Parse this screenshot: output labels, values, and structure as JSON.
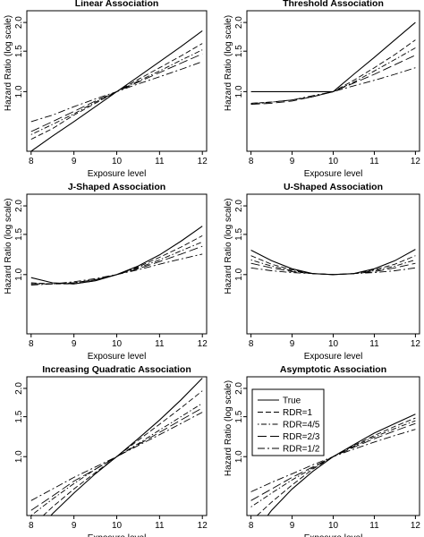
{
  "figure": {
    "panels": [
      {
        "title": "Linear Association",
        "xlabel": "Exposure level",
        "ylabel": "Hazard Ratio (log scale)",
        "show_xlabel": true,
        "xticks": [
          "8",
          "9",
          "10",
          "11",
          "12"
        ],
        "yticks": [
          "1.0",
          "1.5",
          "2.0"
        ],
        "show_legend": false
      },
      {
        "title": "Threshold Association",
        "xlabel": "Exposure level",
        "ylabel": "Hazard Ratio (log scale)",
        "show_xlabel": true,
        "xticks": [
          "8",
          "9",
          "10",
          "11",
          "12"
        ],
        "yticks": [
          "1.0",
          "1.5",
          "2.0"
        ],
        "show_legend": false
      },
      {
        "title": "J-Shaped Association",
        "xlabel": "Exposure level",
        "ylabel": "Hazard Ratio (log scale)",
        "show_xlabel": true,
        "xticks": [
          "8",
          "9",
          "10",
          "11",
          "12"
        ],
        "yticks": [
          "1.0",
          "1.5",
          "2.0"
        ],
        "show_legend": false
      },
      {
        "title": "U-Shaped Association",
        "xlabel": "Exposure level",
        "ylabel": "Hazard Ratio (log scale)",
        "show_xlabel": true,
        "xticks": [
          "8",
          "9",
          "10",
          "11",
          "12"
        ],
        "yticks": [
          "1.0",
          "1.5",
          "2.0"
        ],
        "show_legend": false
      },
      {
        "title": "Increasing Quadratic Association",
        "xlabel": "Exposure level",
        "ylabel": "",
        "show_xlabel": true,
        "xticks": [
          "8",
          "9",
          "10",
          "11",
          "12"
        ],
        "yticks": [
          "1.0",
          "1.5",
          "2.0"
        ],
        "show_legend": false
      },
      {
        "title": "Asymptotic Association",
        "xlabel": "Exposure level",
        "ylabel": "Hazard Ratio (log scale)",
        "show_xlabel": true,
        "xticks": [
          "8",
          "9",
          "10",
          "11",
          "12"
        ],
        "yticks": [
          "1.0",
          "1.5",
          "2.0"
        ],
        "show_legend": true
      }
    ],
    "legend": [
      "True",
      "RDR=1",
      "RDR=4/5",
      "RDR=2/3",
      "RDR=1/2"
    ]
  },
  "chart_data": [
    {
      "type": "line",
      "title": "Linear Association",
      "xlabel": "Exposure level",
      "ylabel": "Hazard Ratio (log scale)",
      "xlim": [
        7.9,
        12.1
      ],
      "ylim": [
        0.55,
        2.25
      ],
      "y_scale": "log",
      "grid": false,
      "x": [
        8,
        8.5,
        9,
        9.5,
        10,
        10.5,
        11,
        11.5,
        12
      ],
      "series": [
        {
          "name": "True",
          "dash": "",
          "values": [
            0.55,
            0.64,
            0.74,
            0.86,
            1.0,
            1.16,
            1.35,
            1.57,
            1.84
          ]
        },
        {
          "name": "RDR=1",
          "dash": "6,3",
          "values": [
            0.62,
            0.69,
            0.79,
            0.89,
            1.0,
            1.13,
            1.27,
            1.43,
            1.62
          ]
        },
        {
          "name": "RDR=4/5",
          "dash": "1.5,2.5,6,2.5",
          "values": [
            0.65,
            0.72,
            0.8,
            0.9,
            1.0,
            1.11,
            1.23,
            1.37,
            1.52
          ]
        },
        {
          "name": "RDR=2/3",
          "dash": "10,4",
          "values": [
            0.67,
            0.74,
            0.82,
            0.91,
            1.0,
            1.1,
            1.21,
            1.33,
            1.46
          ]
        },
        {
          "name": "RDR=1/2",
          "dash": "8,3,2,3",
          "values": [
            0.74,
            0.79,
            0.86,
            0.93,
            1.0,
            1.08,
            1.16,
            1.25,
            1.35
          ]
        }
      ]
    },
    {
      "type": "line",
      "title": "Threshold Association",
      "xlabel": "Exposure level",
      "ylabel": "Hazard Ratio (log scale)",
      "xlim": [
        7.9,
        12.1
      ],
      "ylim": [
        0.55,
        2.25
      ],
      "y_scale": "log",
      "grid": false,
      "x": [
        8,
        8.5,
        9,
        9.5,
        10,
        10.5,
        11,
        11.5,
        12
      ],
      "series": [
        {
          "name": "True",
          "dash": "",
          "values": [
            1.0,
            1.0,
            1.0,
            1.0,
            1.0,
            1.19,
            1.41,
            1.68,
            2.0
          ]
        },
        {
          "name": "RDR=1",
          "dash": "6,3",
          "values": [
            0.89,
            0.9,
            0.92,
            0.95,
            1.0,
            1.12,
            1.27,
            1.45,
            1.68
          ]
        },
        {
          "name": "RDR=4/5",
          "dash": "1.5,2.5,6,2.5",
          "values": [
            0.88,
            0.9,
            0.92,
            0.95,
            1.0,
            1.1,
            1.23,
            1.38,
            1.55
          ]
        },
        {
          "name": "RDR=2/3",
          "dash": "10,4",
          "values": [
            0.88,
            0.89,
            0.91,
            0.95,
            1.0,
            1.09,
            1.19,
            1.31,
            1.44
          ]
        },
        {
          "name": "RDR=1/2",
          "dash": "8,3,2,3",
          "values": [
            0.89,
            0.9,
            0.92,
            0.96,
            1.0,
            1.06,
            1.12,
            1.19,
            1.27
          ]
        }
      ]
    },
    {
      "type": "line",
      "title": "J-Shaped Association",
      "xlabel": "Exposure level",
      "ylabel": "Hazard Ratio (log scale)",
      "xlim": [
        7.9,
        12.1
      ],
      "ylim": [
        0.55,
        2.25
      ],
      "y_scale": "log",
      "grid": false,
      "x": [
        8,
        8.5,
        9,
        9.5,
        10,
        10.5,
        11,
        11.5,
        12
      ],
      "series": [
        {
          "name": "True",
          "dash": "",
          "values": [
            0.97,
            0.92,
            0.91,
            0.94,
            1.0,
            1.09,
            1.22,
            1.4,
            1.63
          ]
        },
        {
          "name": "RDR=1",
          "dash": "6,3",
          "values": [
            0.92,
            0.91,
            0.91,
            0.94,
            1.0,
            1.08,
            1.19,
            1.32,
            1.48
          ]
        },
        {
          "name": "RDR=4/5",
          "dash": "1.5,2.5,6,2.5",
          "values": [
            0.91,
            0.91,
            0.92,
            0.95,
            1.0,
            1.07,
            1.16,
            1.27,
            1.39
          ]
        },
        {
          "name": "RDR=2/3",
          "dash": "10,4",
          "values": [
            0.91,
            0.91,
            0.92,
            0.95,
            1.0,
            1.06,
            1.14,
            1.23,
            1.33
          ]
        },
        {
          "name": "RDR=1/2",
          "dash": "8,3,2,3",
          "values": [
            0.9,
            0.91,
            0.93,
            0.96,
            1.0,
            1.05,
            1.11,
            1.17,
            1.23
          ]
        }
      ]
    },
    {
      "type": "line",
      "title": "U-Shaped Association",
      "xlabel": "Exposure level",
      "ylabel": "Hazard Ratio (log scale)",
      "xlim": [
        7.9,
        12.1
      ],
      "ylim": [
        0.55,
        2.25
      ],
      "y_scale": "log",
      "grid": false,
      "x": [
        8,
        8.5,
        9,
        9.5,
        10,
        10.5,
        11,
        11.5,
        12
      ],
      "series": [
        {
          "name": "True",
          "dash": "",
          "values": [
            1.28,
            1.15,
            1.06,
            1.01,
            1.0,
            1.01,
            1.06,
            1.15,
            1.29
          ]
        },
        {
          "name": "RDR=1",
          "dash": "6,3",
          "values": [
            1.21,
            1.11,
            1.05,
            1.01,
            1.0,
            1.01,
            1.05,
            1.11,
            1.21
          ]
        },
        {
          "name": "RDR=4/5",
          "dash": "1.5,2.5,6,2.5",
          "values": [
            1.16,
            1.09,
            1.04,
            1.01,
            1.0,
            1.01,
            1.04,
            1.09,
            1.16
          ]
        },
        {
          "name": "RDR=2/3",
          "dash": "10,4",
          "values": [
            1.12,
            1.07,
            1.03,
            1.01,
            1.0,
            1.01,
            1.03,
            1.07,
            1.12
          ]
        },
        {
          "name": "RDR=1/2",
          "dash": "8,3,2,3",
          "values": [
            1.07,
            1.04,
            1.02,
            1.01,
            1.0,
            1.01,
            1.02,
            1.04,
            1.07
          ]
        }
      ]
    },
    {
      "type": "line",
      "title": "Increasing Quadratic Association",
      "xlabel": "Exposure level",
      "ylabel": "",
      "xlim": [
        7.9,
        12.1
      ],
      "ylim": [
        0.55,
        2.25
      ],
      "y_scale": "log",
      "grid": false,
      "x": [
        8,
        8.5,
        9,
        9.5,
        10,
        10.5,
        11,
        11.5,
        12
      ],
      "series": [
        {
          "name": "True",
          "dash": "",
          "values": [
            0.44,
            0.56,
            0.69,
            0.84,
            1.0,
            1.2,
            1.45,
            1.78,
            2.22
          ]
        },
        {
          "name": "RDR=1",
          "dash": "6,3",
          "values": [
            0.49,
            0.6,
            0.72,
            0.85,
            1.0,
            1.18,
            1.39,
            1.64,
            1.95
          ]
        },
        {
          "name": "RDR=4/5",
          "dash": "1.5,2.5,6,2.5",
          "values": [
            0.55,
            0.65,
            0.76,
            0.88,
            1.0,
            1.14,
            1.31,
            1.5,
            1.72
          ]
        },
        {
          "name": "RDR=2/3",
          "dash": "10,4",
          "values": [
            0.58,
            0.67,
            0.78,
            0.88,
            1.0,
            1.13,
            1.28,
            1.45,
            1.64
          ]
        },
        {
          "name": "RDR=1/2",
          "dash": "8,3,2,3",
          "values": [
            0.64,
            0.72,
            0.81,
            0.9,
            1.0,
            1.12,
            1.25,
            1.4,
            1.57
          ]
        }
      ]
    },
    {
      "type": "line",
      "title": "Asymptotic Association",
      "xlabel": "Exposure level",
      "ylabel": "Hazard Ratio (log scale)",
      "xlim": [
        7.9,
        12.1
      ],
      "ylim": [
        0.55,
        2.25
      ],
      "y_scale": "log",
      "grid": false,
      "legend": "top-left",
      "x": [
        8,
        8.5,
        9,
        9.5,
        10,
        10.5,
        11,
        11.5,
        12
      ],
      "series": [
        {
          "name": "True",
          "dash": "",
          "values": [
            0.44,
            0.58,
            0.72,
            0.86,
            1.0,
            1.13,
            1.27,
            1.4,
            1.54
          ]
        },
        {
          "name": "RDR=1",
          "dash": "6,3",
          "values": [
            0.52,
            0.63,
            0.75,
            0.88,
            1.0,
            1.12,
            1.24,
            1.36,
            1.48
          ]
        },
        {
          "name": "RDR=4/5",
          "dash": "1.5,2.5,6,2.5",
          "values": [
            0.6,
            0.69,
            0.79,
            0.89,
            1.0,
            1.11,
            1.22,
            1.33,
            1.44
          ]
        },
        {
          "name": "RDR=2/3",
          "dash": "10,4",
          "values": [
            0.64,
            0.72,
            0.81,
            0.9,
            1.0,
            1.1,
            1.2,
            1.3,
            1.4
          ]
        },
        {
          "name": "RDR=1/2",
          "dash": "8,3,2,3",
          "values": [
            0.7,
            0.77,
            0.84,
            0.92,
            1.0,
            1.08,
            1.16,
            1.24,
            1.32
          ]
        }
      ]
    }
  ]
}
